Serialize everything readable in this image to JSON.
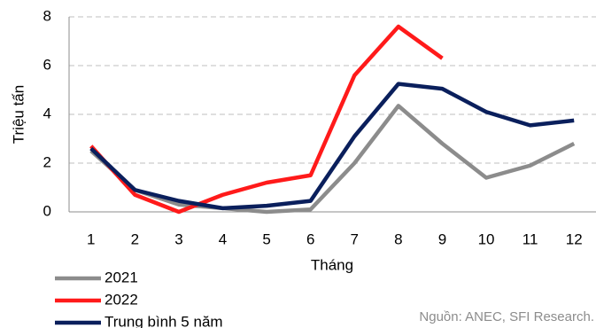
{
  "chart_data": {
    "type": "line",
    "x_label": "Tháng",
    "y_label": "Triệu tấn",
    "source": "Nguồn: ANEC, SFI Research.",
    "categories": [
      "1",
      "2",
      "3",
      "4",
      "5",
      "6",
      "7",
      "8",
      "9",
      "10",
      "11",
      "12"
    ],
    "series": [
      {
        "name": "2021",
        "color": "#8c8c8c",
        "values": [
          2.5,
          0.9,
          0.3,
          0.15,
          0.0,
          0.1,
          2.0,
          4.35,
          2.8,
          1.4,
          1.9,
          2.8
        ]
      },
      {
        "name": "2022",
        "color": "#ff1a1a",
        "values": [
          2.7,
          0.7,
          0.0,
          0.7,
          1.2,
          1.5,
          5.6,
          7.6,
          6.3,
          null,
          null,
          null
        ]
      },
      {
        "name": "Trung bình 5 năm",
        "color": "#0a1f5c",
        "values": [
          2.6,
          0.9,
          0.45,
          0.15,
          0.25,
          0.45,
          3.1,
          5.25,
          5.05,
          4.1,
          3.55,
          3.75
        ]
      }
    ],
    "ylim": [
      0,
      8
    ],
    "yticks": [
      0,
      2,
      4,
      6,
      8
    ],
    "grid": true,
    "legend": "bottom-left"
  }
}
